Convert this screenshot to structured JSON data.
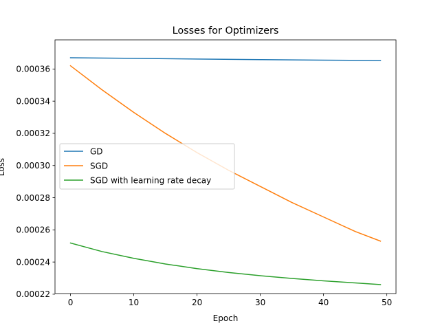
{
  "chart_data": {
    "type": "line",
    "title": "Losses for Optimizers",
    "xlabel": "Epoch",
    "ylabel": "Loss",
    "xlim": [
      -2.45,
      51.45
    ],
    "ylim": [
      0.0002204,
      0.0003781
    ],
    "xticks": [
      0,
      10,
      20,
      30,
      40,
      50
    ],
    "yticks": [
      0.00022,
      0.00024,
      0.00026,
      0.00028,
      0.0003,
      0.00032,
      0.00034,
      0.00036
    ],
    "ytick_labels": [
      "0.00022",
      "0.00024",
      "0.00026",
      "0.00028",
      "0.00030",
      "0.00032",
      "0.00034",
      "0.00036"
    ],
    "grid": false,
    "legend_position": "center-left",
    "series": [
      {
        "name": "GD",
        "color": "#1f77b4",
        "x": [
          0,
          10,
          20,
          30,
          40,
          49
        ],
        "values": [
          0.000367,
          0.0003666,
          0.0003662,
          0.0003658,
          0.0003655,
          0.0003652
        ]
      },
      {
        "name": "SGD",
        "color": "#ff7f0e",
        "x": [
          0,
          5,
          10,
          15,
          20,
          25,
          30,
          35,
          40,
          45,
          49
        ],
        "values": [
          0.000362,
          0.000347,
          0.000333,
          0.00032,
          0.000308,
          0.000297,
          0.000287,
          0.000277,
          0.000268,
          0.000259,
          0.000253
        ]
      },
      {
        "name": "SGD with learning rate decay",
        "color": "#2ca02c",
        "x": [
          0,
          5,
          10,
          15,
          20,
          25,
          30,
          35,
          40,
          45,
          49
        ],
        "values": [
          0.0002518,
          0.0002465,
          0.0002423,
          0.0002388,
          0.0002359,
          0.0002335,
          0.0002315,
          0.0002298,
          0.0002283,
          0.000227,
          0.000226
        ]
      }
    ]
  }
}
